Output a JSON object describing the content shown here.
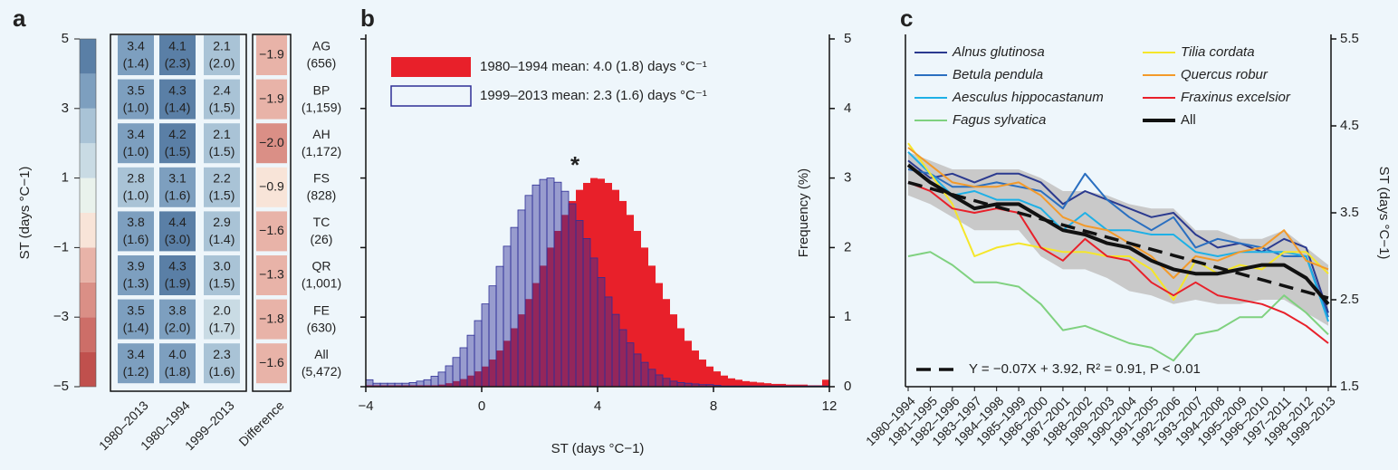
{
  "chart_data": [
    {
      "type": "heatmap",
      "label": "a",
      "colorbar_label": "ST (days °C−1)",
      "ylim": [
        -5,
        5
      ],
      "yticks": [
        {
          "value": -5,
          "label": "−5"
        },
        {
          "value": -3,
          "label": "−3"
        },
        {
          "value": -1,
          "label": "−1"
        },
        1,
        3,
        5
      ],
      "colors": [
        "#c0504d",
        "#cd6e68",
        "#da8f86",
        "#e8b3a8",
        "#f8e4d8",
        "#e9f2ec",
        "#c9dbe4",
        "#a9c3d6",
        "#7d9fbf",
        "#5a7fa6"
      ],
      "columns": [
        "1980–2013",
        "1980–1994",
        "1999–2013",
        "Difference"
      ],
      "rows": [
        "AG",
        "BP",
        "AH",
        "FS",
        "TC",
        "QR",
        "FE",
        "All"
      ],
      "row_counts": [
        "(656)",
        "(1,159)",
        "(1,172)",
        "(828)",
        "(26)",
        "(1,001)",
        "(630)",
        "(5,472)"
      ],
      "values": [
        [
          3.4,
          4.1,
          2.1,
          -1.9
        ],
        [
          3.5,
          4.3,
          2.4,
          -1.9
        ],
        [
          3.4,
          4.2,
          2.1,
          -2.0
        ],
        [
          2.8,
          3.1,
          2.2,
          -0.9
        ],
        [
          3.8,
          4.4,
          2.9,
          -1.6
        ],
        [
          3.9,
          4.3,
          3.0,
          -1.3
        ],
        [
          3.5,
          3.8,
          2.0,
          -1.8
        ],
        [
          3.4,
          4.0,
          2.3,
          -1.6
        ]
      ],
      "value_labels": [
        [
          "3.4",
          "4.1",
          "2.1",
          "−1.9"
        ],
        [
          "3.5",
          "4.3",
          "2.4",
          "−1.9"
        ],
        [
          "3.4",
          "4.2",
          "2.1",
          "−2.0"
        ],
        [
          "2.8",
          "3.1",
          "2.2",
          "−0.9"
        ],
        [
          "3.8",
          "4.4",
          "2.9",
          "−1.6"
        ],
        [
          "3.9",
          "4.3",
          "3.0",
          "−1.3"
        ],
        [
          "3.5",
          "3.8",
          "2.0",
          "−1.8"
        ],
        [
          "3.4",
          "4.0",
          "2.3",
          "−1.6"
        ]
      ],
      "errors": [
        [
          1.4,
          2.3,
          2.0,
          null
        ],
        [
          1.0,
          1.4,
          1.5,
          null
        ],
        [
          1.0,
          1.5,
          1.5,
          null
        ],
        [
          1.0,
          1.6,
          1.5,
          null
        ],
        [
          1.6,
          3.0,
          1.4,
          null
        ],
        [
          1.3,
          1.9,
          1.5,
          null
        ],
        [
          1.4,
          2.0,
          1.7,
          null
        ],
        [
          1.2,
          1.8,
          1.6,
          null
        ]
      ],
      "error_labels": [
        [
          "(1.4)",
          "(2.3)",
          "(2.0)",
          null
        ],
        [
          "(1.0)",
          "(1.4)",
          "(1.5)",
          null
        ],
        [
          "(1.0)",
          "(1.5)",
          "(1.5)",
          null
        ],
        [
          "(1.0)",
          "(1.6)",
          "(1.5)",
          null
        ],
        [
          "(1.6)",
          "(3.0)",
          "(1.4)",
          null
        ],
        [
          "(1.3)",
          "(1.9)",
          "(1.5)",
          null
        ],
        [
          "(1.4)",
          "(2.0)",
          "(1.7)",
          null
        ],
        [
          "(1.2)",
          "(1.8)",
          "(1.6)",
          null
        ]
      ]
    },
    {
      "type": "histogram",
      "label": "b",
      "xlabel": "ST (days °C−1)",
      "ylabel": "Frequency (%)",
      "annotation": "*",
      "xlim": [
        -4,
        12
      ],
      "xticks": [
        {
          "value": -4,
          "label": "−4"
        },
        0,
        4,
        8,
        12
      ],
      "ylim": [
        0,
        5
      ],
      "yticks": [
        0,
        1,
        2,
        3,
        4,
        5
      ],
      "bins": [
        -4,
        -3.75,
        -3.5,
        -3.25,
        -3,
        -2.75,
        -2.5,
        -2.25,
        -2,
        -1.75,
        -1.5,
        -1.25,
        -1,
        -0.75,
        -0.5,
        -0.25,
        0,
        0.25,
        0.5,
        0.75,
        1,
        1.25,
        1.5,
        1.75,
        2,
        2.25,
        2.5,
        2.75,
        3,
        3.25,
        3.5,
        3.75,
        4,
        4.25,
        4.5,
        4.75,
        5,
        5.25,
        5.5,
        5.75,
        6,
        6.25,
        6.5,
        6.75,
        7,
        7.25,
        7.5,
        7.75,
        8,
        8.25,
        8.5,
        8.75,
        9,
        9.25,
        9.5,
        9.75,
        10,
        10.25,
        10.5,
        10.75,
        11,
        11.25,
        11.5,
        11.75,
        12
      ],
      "series": [
        {
          "name": "1980–1994 mean: 4.0 (1.8) days °C⁻¹",
          "color": "#e8202a",
          "style": "filled",
          "values": [
            0.02,
            0.02,
            0.02,
            0.02,
            0.02,
            0.02,
            0.02,
            0.02,
            0.02,
            0.02,
            0.03,
            0.05,
            0.08,
            0.11,
            0.16,
            0.22,
            0.29,
            0.39,
            0.52,
            0.66,
            0.84,
            1.04,
            1.26,
            1.49,
            1.74,
            2.0,
            2.24,
            2.47,
            2.67,
            2.83,
            2.93,
            3.0,
            2.99,
            2.93,
            2.83,
            2.67,
            2.47,
            2.24,
            2.0,
            1.74,
            1.49,
            1.26,
            1.04,
            0.84,
            0.66,
            0.52,
            0.39,
            0.29,
            0.22,
            0.16,
            0.12,
            0.1,
            0.08,
            0.07,
            0.06,
            0.05,
            0.04,
            0.04,
            0.03,
            0.03,
            0.03,
            0.02,
            0.02,
            0.1
          ]
        },
        {
          "name": "1999–2013 mean: 2.3 (1.6) days °C⁻¹",
          "color": "#2e2e96",
          "style": "outline",
          "values": [
            0.1,
            0.05,
            0.05,
            0.05,
            0.05,
            0.05,
            0.06,
            0.08,
            0.1,
            0.15,
            0.21,
            0.3,
            0.42,
            0.56,
            0.74,
            0.95,
            1.19,
            1.45,
            1.73,
            2.02,
            2.29,
            2.54,
            2.75,
            2.9,
            2.98,
            3.0,
            2.94,
            2.81,
            2.63,
            2.39,
            2.13,
            1.85,
            1.57,
            1.29,
            1.04,
            0.82,
            0.63,
            0.47,
            0.35,
            0.25,
            0.17,
            0.12,
            0.08,
            0.06,
            0.05,
            0.04,
            0.03,
            0.03,
            0.02,
            0.01,
            0.01,
            0.01,
            0.01,
            0.01,
            0.01,
            0.01,
            0.01,
            0.01,
            0.01,
            0.01,
            0.01,
            0.01,
            0.01,
            0.01
          ]
        }
      ]
    },
    {
      "type": "line",
      "label": "c",
      "ylabel": "ST (days °C−1)",
      "categories": [
        "1980–1994",
        "1981–1995",
        "1982–1996",
        "1983–1997",
        "1984–1998",
        "1985–1999",
        "1986–2000",
        "1987–2001",
        "1988–2002",
        "1989–2003",
        "1990–2004",
        "1991–2005",
        "1992–2006",
        "1993–2007",
        "1994–2008",
        "1995–2009",
        "1996–2010",
        "1997–2011",
        "1998–2012",
        "1999–2013"
      ],
      "y2lim": [
        1.5,
        5.5
      ],
      "y2ticks": [
        1.5,
        2.5,
        3.5,
        4.5,
        5.5
      ],
      "band": {
        "color": "#c9c9c9",
        "upper": [
          4.2,
          4.1,
          4.0,
          4.0,
          4.0,
          4.0,
          3.9,
          3.75,
          3.75,
          3.7,
          3.6,
          3.55,
          3.55,
          3.3,
          3.3,
          3.2,
          3.2,
          3.3,
          3.1,
          2.9
        ],
        "lower": [
          3.7,
          3.6,
          3.45,
          3.3,
          3.3,
          3.3,
          3.0,
          2.85,
          2.85,
          2.75,
          2.6,
          2.55,
          2.45,
          2.5,
          2.45,
          2.45,
          2.5,
          2.5,
          2.35,
          2.2
        ]
      },
      "series": [
        {
          "name": "Alnus glutinosa",
          "color": "#2b3a8f",
          "axis": "y2",
          "linewidth": 2,
          "values": [
            4.1,
            3.9,
            3.95,
            3.85,
            3.95,
            3.95,
            3.85,
            3.6,
            3.75,
            3.65,
            3.55,
            3.45,
            3.5,
            3.25,
            3.1,
            3.15,
            3.05,
            3.2,
            3.1,
            2.35
          ]
        },
        {
          "name": "Betula pendula",
          "color": "#2a6fc0",
          "axis": "y2",
          "linewidth": 2,
          "values": [
            4.0,
            3.95,
            3.8,
            3.8,
            3.85,
            3.8,
            3.75,
            3.55,
            3.95,
            3.65,
            3.45,
            3.3,
            3.45,
            3.1,
            3.2,
            3.15,
            3.1,
            3.0,
            3.0,
            2.3
          ]
        },
        {
          "name": "Aesculus hippocastanum",
          "color": "#1eb0e6",
          "axis": "y2",
          "linewidth": 2,
          "values": [
            4.2,
            3.95,
            3.7,
            3.75,
            3.65,
            3.65,
            3.55,
            3.3,
            3.5,
            3.3,
            3.3,
            3.25,
            3.25,
            3.05,
            3.0,
            3.05,
            3.05,
            3.05,
            3.0,
            2.25
          ]
        },
        {
          "name": "Fagus sylvatica",
          "color": "#7fd17f",
          "axis": "y2",
          "linewidth": 2,
          "values": [
            3.0,
            3.05,
            2.9,
            2.7,
            2.7,
            2.65,
            2.45,
            2.15,
            2.2,
            2.1,
            2.0,
            1.95,
            1.8,
            2.1,
            2.15,
            2.3,
            2.3,
            2.55,
            2.35,
            2.1
          ]
        },
        {
          "name": "Tilia cordata",
          "color": "#f5e62a",
          "axis": "y2",
          "linewidth": 2,
          "values": [
            4.3,
            3.95,
            3.6,
            3.0,
            3.1,
            3.15,
            3.1,
            3.05,
            3.05,
            3.0,
            3.0,
            2.85,
            2.5,
            2.95,
            2.8,
            2.9,
            2.85,
            3.05,
            3.05,
            2.8
          ]
        },
        {
          "name": "Quercus robur",
          "color": "#f39a2a",
          "axis": "y2",
          "linewidth": 2,
          "values": [
            4.25,
            4.05,
            3.85,
            3.8,
            3.8,
            3.85,
            3.7,
            3.45,
            3.35,
            3.3,
            3.15,
            3.0,
            2.75,
            3.0,
            2.95,
            3.05,
            3.1,
            3.3,
            2.95,
            2.85
          ]
        },
        {
          "name": "Fraxinus excelsior",
          "color": "#e8202a",
          "axis": "y2",
          "linewidth": 2,
          "values": [
            3.85,
            3.75,
            3.55,
            3.5,
            3.55,
            3.5,
            3.1,
            2.95,
            3.2,
            3.0,
            2.95,
            2.7,
            2.55,
            2.7,
            2.55,
            2.5,
            2.45,
            2.35,
            2.2,
            2.0
          ]
        },
        {
          "name": "All",
          "color": "#111111",
          "axis": "y2",
          "linewidth": 4,
          "values": [
            4.05,
            3.85,
            3.7,
            3.55,
            3.6,
            3.6,
            3.45,
            3.3,
            3.25,
            3.15,
            3.1,
            2.95,
            2.85,
            2.8,
            2.8,
            2.85,
            2.9,
            2.9,
            2.75,
            2.45
          ]
        },
        {
          "name": "Y = −0.07X + 3.92, R² = 0.91, P < 0.01",
          "color": "#111111",
          "axis": "y2",
          "linewidth": 3.5,
          "dash": true,
          "values": [
            3.85,
            3.78,
            3.71,
            3.64,
            3.57,
            3.5,
            3.43,
            3.36,
            3.29,
            3.22,
            3.15,
            3.08,
            3.01,
            2.94,
            2.87,
            2.8,
            2.73,
            2.66,
            2.59,
            2.52
          ]
        }
      ]
    }
  ]
}
